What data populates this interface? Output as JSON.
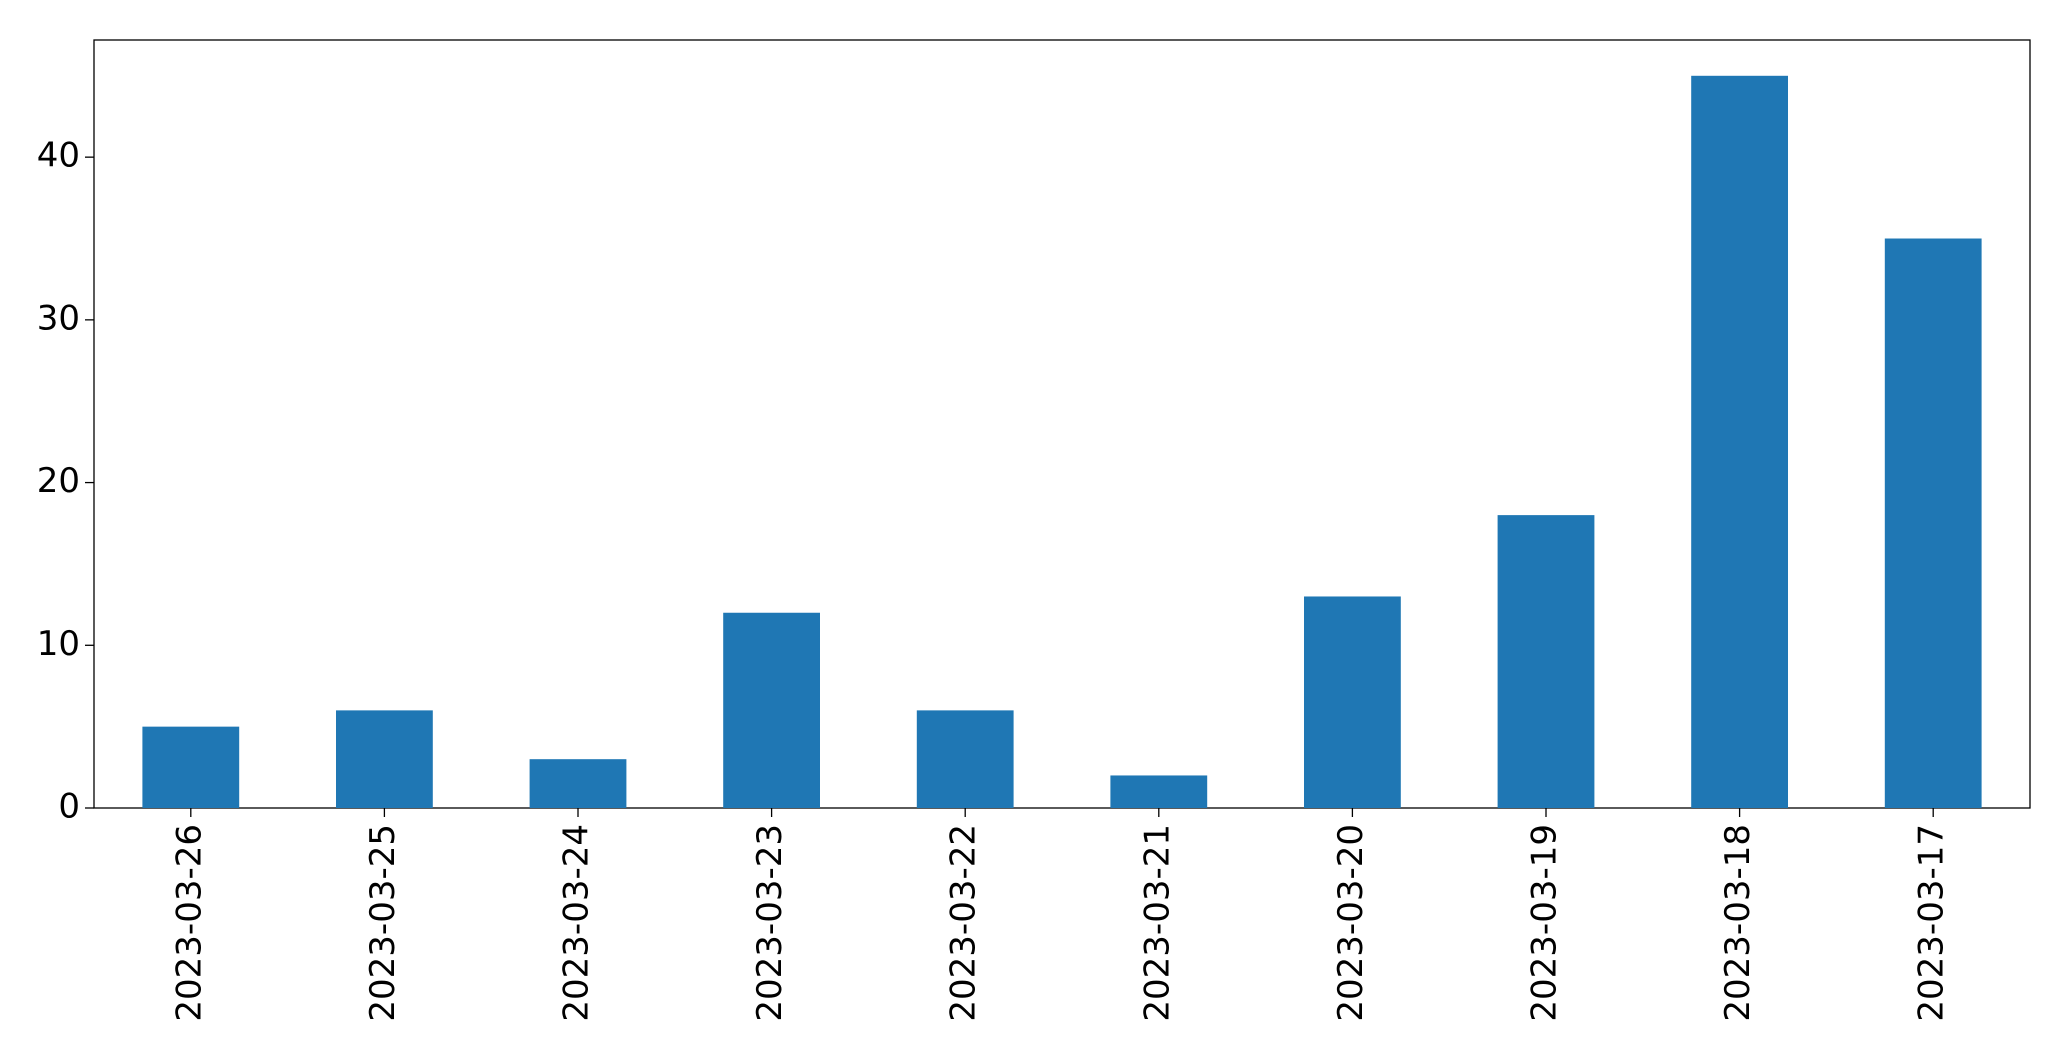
{
  "chart_data": {
    "type": "bar",
    "categories": [
      "2023-03-26",
      "2023-03-25",
      "2023-03-24",
      "2023-03-23",
      "2023-03-22",
      "2023-03-21",
      "2023-03-20",
      "2023-03-19",
      "2023-03-18",
      "2023-03-17"
    ],
    "values": [
      5,
      6,
      3,
      12,
      6,
      2,
      13,
      18,
      45,
      35
    ],
    "color": "#1f77b4",
    "ylim": [
      0,
      47.2
    ],
    "yticks": [
      0,
      10,
      20,
      30,
      40
    ],
    "grid": false
  }
}
